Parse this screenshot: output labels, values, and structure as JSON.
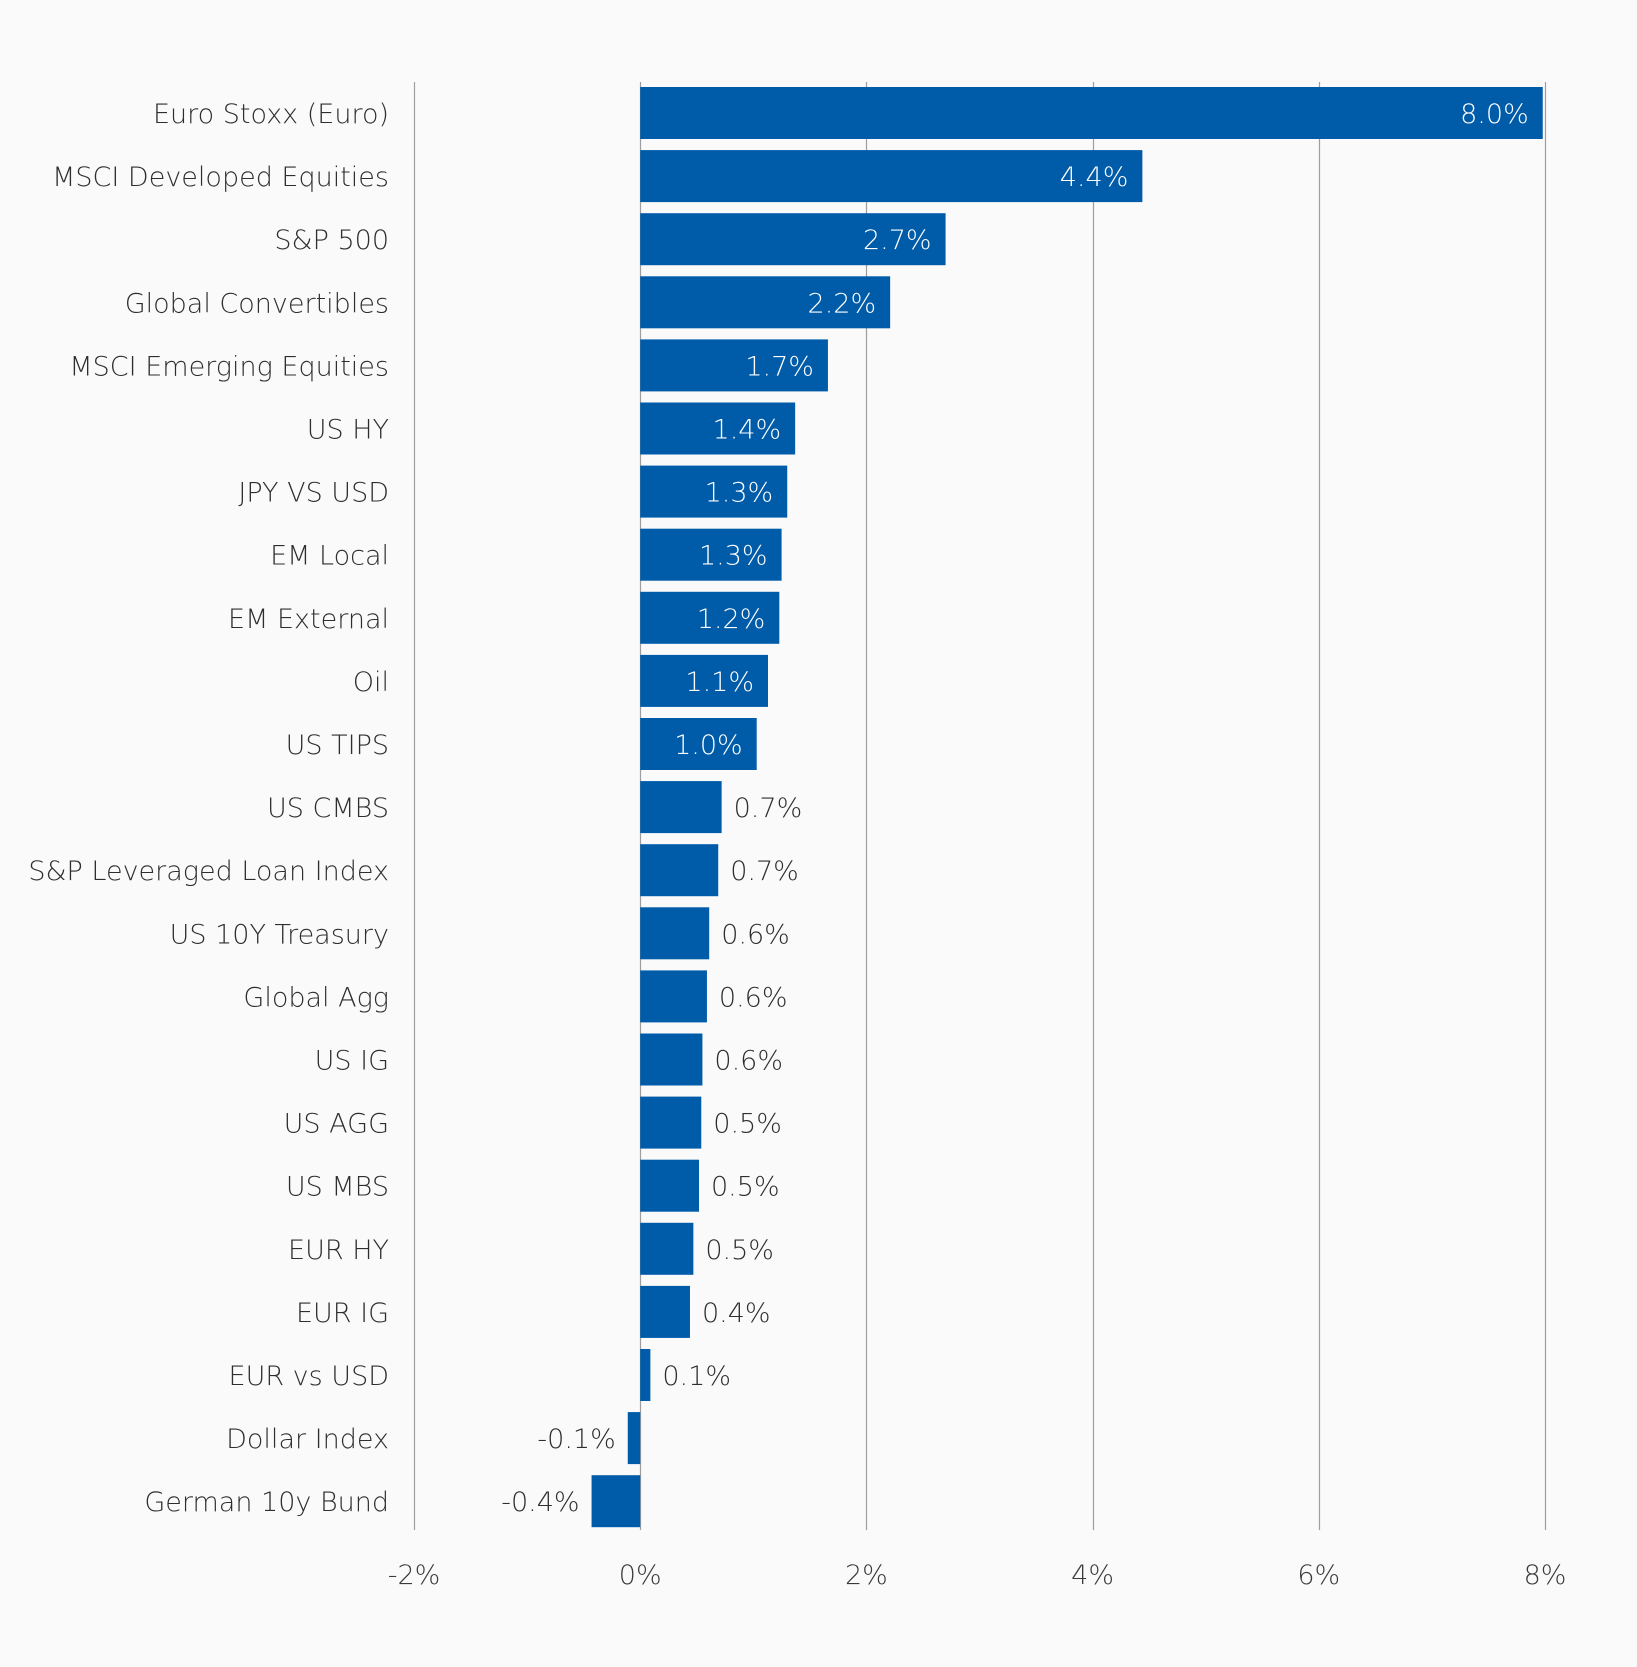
{
  "chart_data": {
    "type": "bar",
    "orientation": "horizontal",
    "title": "",
    "xlabel": "",
    "ylabel": "",
    "categories": [
      "Euro Stoxx (Euro)",
      "MSCI Developed Equities",
      "S&P 500",
      "Global Convertibles",
      "MSCI Emerging Equities",
      "US HY",
      "JPY VS USD",
      "EM Local",
      "EM External",
      "Oil",
      "US TIPS",
      "US CMBS",
      "S&P Leveraged Loan Index",
      "US 10Y Treasury",
      "Global Agg",
      "US IG",
      "US AGG",
      "US MBS",
      "EUR HY",
      "EUR IG",
      "EUR vs USD",
      "Dollar Index",
      "German 10y Bund"
    ],
    "values": [
      7.98,
      4.44,
      2.7,
      2.21,
      1.66,
      1.37,
      1.3,
      1.25,
      1.23,
      1.13,
      1.03,
      0.72,
      0.69,
      0.61,
      0.59,
      0.55,
      0.54,
      0.52,
      0.47,
      0.44,
      0.09,
      -0.11,
      -0.43
    ],
    "value_labels": [
      "8.0%",
      "4.4%",
      "2.7%",
      "2.2%",
      "1.7%",
      "1.4%",
      "1.3%",
      "1.3%",
      "1.2%",
      "1.1%",
      "1.0%",
      "0.7%",
      "0.7%",
      "0.6%",
      "0.6%",
      "0.6%",
      "0.5%",
      "0.5%",
      "0.5%",
      "0.4%",
      "0.1%",
      "-0.1%",
      "-0.4%"
    ],
    "xlim": [
      -2,
      8
    ],
    "xticks": [
      -2,
      0,
      2,
      4,
      6,
      8
    ],
    "xtick_labels": [
      "-2%",
      "0%",
      "2%",
      "4%",
      "6%",
      "8%"
    ],
    "grid": "vertical",
    "legend": "none",
    "colors": {
      "bar": "#005BA8",
      "grid": "#9e9e9e",
      "background": "#FAFAFA",
      "label_inside": "#ffffff",
      "label_outside": "#2e2e2e"
    }
  }
}
